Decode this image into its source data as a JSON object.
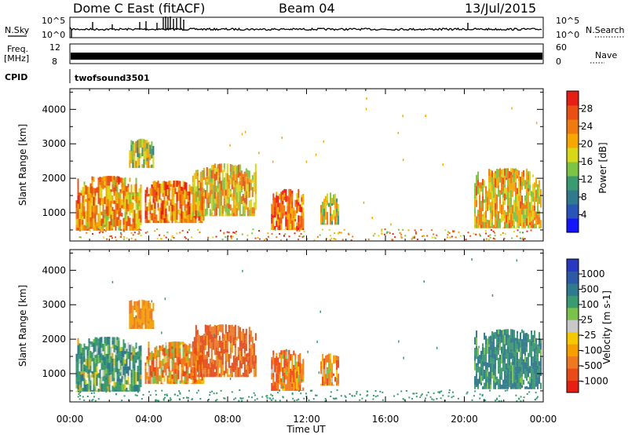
{
  "header": {
    "radar": "Dome C East (fitACF)",
    "beam": "Beam 04",
    "date": "13/Jul/2015"
  },
  "left_labels": {
    "nsky": "N.Sky",
    "freq_line1": "Freq.",
    "freq_line2": "[MHz]",
    "cpid": "CPID"
  },
  "right_labels": {
    "nsearch": "N.Search",
    "nave": "Nave"
  },
  "cpid_name": "twofsound",
  "cpid_value": "3501",
  "noise_axis": {
    "top": "10^5",
    "bottom": "10^0"
  },
  "freq_axis": {
    "left_top": "12",
    "left_bottom": "8",
    "right_top": "60",
    "right_bottom": "0"
  },
  "range_label": "Slant Range [km]",
  "range_ticks": [
    "1000",
    "2000",
    "3000",
    "4000"
  ],
  "x_axis": {
    "label": "Time UT",
    "ticks": [
      "00:00",
      "04:00",
      "08:00",
      "12:00",
      "16:00",
      "20:00",
      "00:00"
    ]
  },
  "power_colorbar": {
    "label": "Power [dB]",
    "ticks": [
      "4",
      "8",
      "12",
      "16",
      "20",
      "24",
      "28"
    ],
    "colors": [
      "#1414ff",
      "#2a55b8",
      "#2f7a8c",
      "#3a9a70",
      "#7cc444",
      "#d8d818",
      "#f6a800",
      "#f07a10",
      "#ea5014",
      "#e81e14"
    ]
  },
  "velocity_colorbar": {
    "label": "Velocity [m s-1]",
    "ticks": [
      "1000",
      "500",
      "100",
      "25",
      "-25",
      "-100",
      "-500",
      "-1000"
    ],
    "colors": [
      "#2838c0",
      "#2c5aa6",
      "#2f7a8c",
      "#3a9a70",
      "#7ac24a",
      "#c8c8c8",
      "#f6c800",
      "#f6a000",
      "#f07820",
      "#ea4a18",
      "#e81e14"
    ]
  },
  "chart_data": {
    "type": "heatmap",
    "title": "Dome C East (fitACF)",
    "xlabel": "Time UT",
    "ylabel": "Slant Range [km]",
    "xlim": [
      "00:00",
      "24:00"
    ],
    "ylim": [
      180,
      4600
    ],
    "series": [
      {
        "name": "Power [dB]",
        "regions": [
          {
            "t0": 0.3,
            "t1": 3.6,
            "r0": 480,
            "r1": 2350,
            "level": 22
          },
          {
            "t0": 3.0,
            "t1": 4.2,
            "r0": 2300,
            "r1": 3300,
            "level": 16
          },
          {
            "t0": 3.8,
            "t1": 6.8,
            "r0": 700,
            "r1": 2150,
            "level": 24
          },
          {
            "t0": 6.2,
            "t1": 9.4,
            "r0": 900,
            "r1": 2700,
            "level": 20
          },
          {
            "t0": 10.2,
            "t1": 11.8,
            "r0": 500,
            "r1": 1900,
            "level": 25
          },
          {
            "t0": 12.7,
            "t1": 13.6,
            "r0": 650,
            "r1": 1750,
            "level": 18
          },
          {
            "t0": 20.5,
            "t1": 23.9,
            "r0": 550,
            "r1": 2600,
            "level": 20
          }
        ]
      },
      {
        "name": "Velocity",
        "regions": [
          {
            "t0": 0.3,
            "t1": 3.6,
            "r0": 480,
            "r1": 2350,
            "level": 200
          },
          {
            "t0": 3.0,
            "t1": 4.2,
            "r0": 2300,
            "r1": 3300,
            "level": -100
          },
          {
            "t0": 3.8,
            "t1": 6.8,
            "r0": 700,
            "r1": 2150,
            "level": -150
          },
          {
            "t0": 6.2,
            "t1": 9.4,
            "r0": 900,
            "r1": 2700,
            "level": -300
          },
          {
            "t0": 10.2,
            "t1": 11.8,
            "r0": 500,
            "r1": 1900,
            "level": -200
          },
          {
            "t0": 12.7,
            "t1": 13.6,
            "r0": 650,
            "r1": 1750,
            "level": -150
          },
          {
            "t0": 20.5,
            "t1": 23.9,
            "r0": 550,
            "r1": 2600,
            "level": 300
          }
        ]
      }
    ]
  }
}
